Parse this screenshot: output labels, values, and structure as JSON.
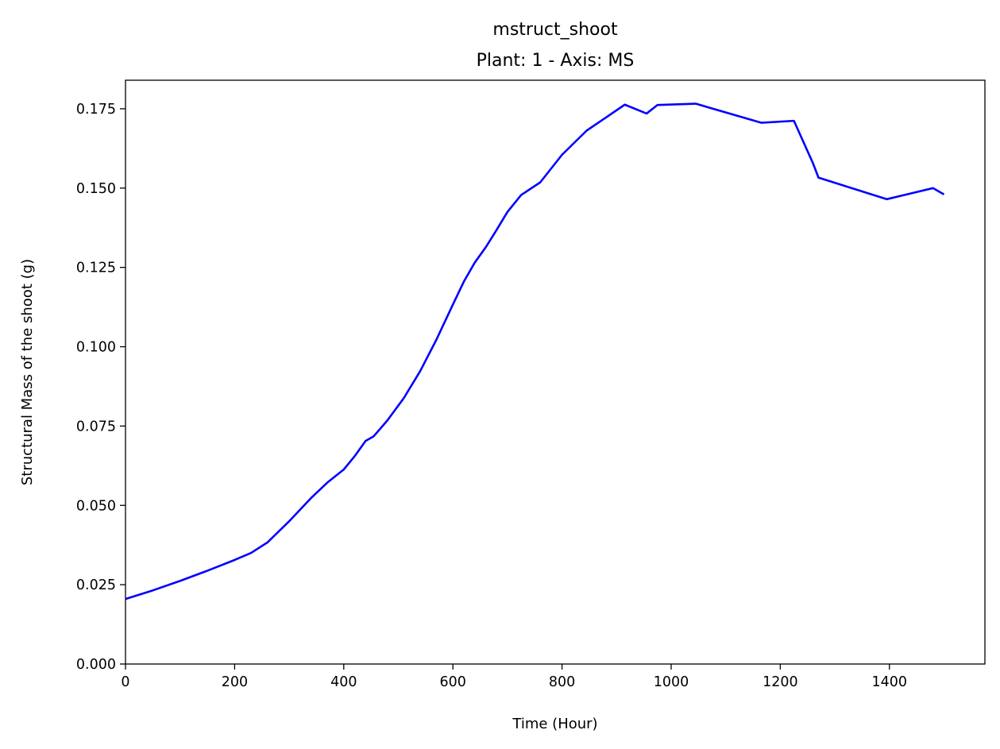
{
  "chart_data": {
    "type": "line",
    "title": "mstruct_shoot",
    "subtitle": "Plant: 1 - Axis: MS",
    "xlabel": "Time (Hour)",
    "ylabel": "Structural Mass of the shoot (g)",
    "xlim": [
      0,
      1575
    ],
    "ylim": [
      0,
      0.184
    ],
    "xticks": [
      0,
      200,
      400,
      600,
      800,
      1000,
      1200,
      1400
    ],
    "xtick_labels": [
      "0",
      "200",
      "400",
      "600",
      "800",
      "1000",
      "1200",
      "1400"
    ],
    "yticks": [
      0,
      0.025,
      0.05,
      0.075,
      0.1,
      0.125,
      0.15,
      0.175
    ],
    "ytick_labels": [
      "0.000",
      "0.025",
      "0.050",
      "0.075",
      "0.100",
      "0.125",
      "0.150",
      "0.175"
    ],
    "grid": false,
    "series": [
      {
        "color": "#0000ff",
        "x": [
          0,
          50,
          100,
          150,
          200,
          230,
          260,
          300,
          340,
          370,
          400,
          420,
          440,
          455,
          480,
          510,
          540,
          570,
          600,
          620,
          640,
          660,
          680,
          700,
          725,
          760,
          800,
          845,
          880,
          915,
          955,
          975,
          1045,
          1165,
          1225,
          1260,
          1270,
          1395,
          1480,
          1500
        ],
        "y": [
          0.0205,
          0.0232,
          0.0262,
          0.0294,
          0.0328,
          0.035,
          0.0383,
          0.045,
          0.0523,
          0.0572,
          0.0613,
          0.0655,
          0.0703,
          0.0718,
          0.0768,
          0.0838,
          0.0923,
          0.1023,
          0.1133,
          0.1205,
          0.1265,
          0.1313,
          0.1368,
          0.1425,
          0.1478,
          0.1518,
          0.1605,
          0.1681,
          0.1722,
          0.1763,
          0.1735,
          0.1762,
          0.1766,
          0.1706,
          0.1712,
          0.1578,
          0.1533,
          0.1465,
          0.15,
          0.148
        ]
      }
    ]
  }
}
